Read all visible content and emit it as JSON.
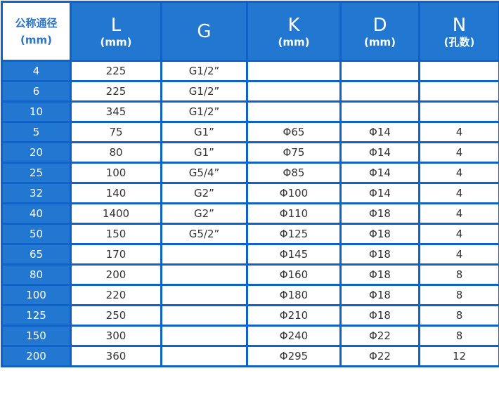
{
  "header": {
    "dn": {
      "line1": "公称通径",
      "line2": "(mm)"
    },
    "columns": [
      {
        "title": "L",
        "unit": "(mm)"
      },
      {
        "title": "G",
        "unit": ""
      },
      {
        "title": "K",
        "unit": "(mm)"
      },
      {
        "title": "D",
        "unit": "(mm)"
      },
      {
        "title": "N",
        "unit": "(孔数)"
      }
    ]
  },
  "rows": [
    [
      "4",
      "225",
      "G1/2”",
      "",
      "",
      ""
    ],
    [
      "6",
      "225",
      "G1/2”",
      "",
      "",
      ""
    ],
    [
      "10",
      "345",
      "G1/2”",
      "",
      "",
      ""
    ],
    [
      "5",
      "75",
      "G1”",
      "Φ65",
      "Φ14",
      "4"
    ],
    [
      "20",
      "80",
      "G1”",
      "Φ75",
      "Φ14",
      "4"
    ],
    [
      "25",
      "100",
      "G5/4”",
      "Φ85",
      "Φ14",
      "4"
    ],
    [
      "32",
      "140",
      "G2”",
      "Φ100",
      "Φ14",
      "4"
    ],
    [
      "40",
      "1400",
      "G2”",
      "Φ110",
      "Φ18",
      "4"
    ],
    [
      "50",
      "150",
      "G5/2”",
      "Φ125",
      "Φ18",
      "4"
    ],
    [
      "65",
      "170",
      "",
      "Φ145",
      "Φ18",
      "4"
    ],
    [
      "80",
      "200",
      "",
      "Φ160",
      "Φ18",
      "8"
    ],
    [
      "100",
      "220",
      "",
      "Φ180",
      "Φ18",
      "8"
    ],
    [
      "125",
      "250",
      "",
      "Φ210",
      "Φ18",
      "8"
    ],
    [
      "150",
      "300",
      "",
      "Φ240",
      "Φ22",
      "8"
    ],
    [
      "200",
      "360",
      "",
      "Φ295",
      "Φ22",
      "12"
    ]
  ],
  "colors": {
    "border": "#0f62c8",
    "header_bg": "#2277d0",
    "corner_text": "#2c74c6"
  }
}
